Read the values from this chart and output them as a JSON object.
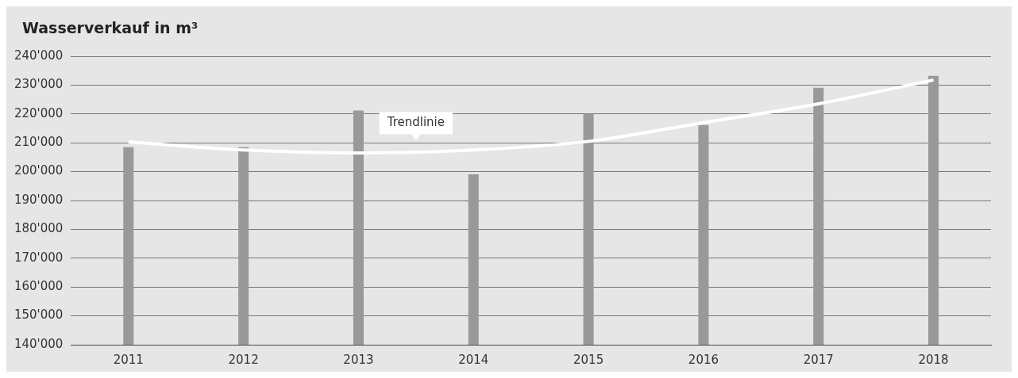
{
  "chart_data": {
    "type": "bar",
    "title": "Wasserverkauf in m³",
    "categories": [
      "2011",
      "2012",
      "2013",
      "2014",
      "2015",
      "2016",
      "2017",
      "2018"
    ],
    "series": [
      {
        "color": "#999999",
        "values": [
          208500,
          208500,
          221200,
          199100,
          220000,
          216200,
          229100,
          233200
        ]
      },
      {
        "type": "line",
        "name": "Trendlinie",
        "color": "#ffffff",
        "values": [
          210300,
          207500,
          206500,
          207500,
          210500,
          217000,
          223500,
          231800
        ]
      }
    ],
    "ylim": [
      140000,
      240000
    ],
    "yticks": [
      {
        "value": 140000,
        "label": "140'000"
      },
      {
        "value": 150000,
        "label": "150'000"
      },
      {
        "value": 160000,
        "label": "160'000"
      },
      {
        "value": 170000,
        "label": "170'000"
      },
      {
        "value": 180000,
        "label": "180'000"
      },
      {
        "value": 190000,
        "label": "190'000"
      },
      {
        "value": 200000,
        "label": "200'000"
      },
      {
        "value": 210000,
        "label": "210'000"
      },
      {
        "value": 220000,
        "label": "220'000"
      },
      {
        "value": 230000,
        "label": "230'000"
      },
      {
        "value": 240000,
        "label": "240'000"
      }
    ],
    "grid": "y",
    "legend": false
  }
}
